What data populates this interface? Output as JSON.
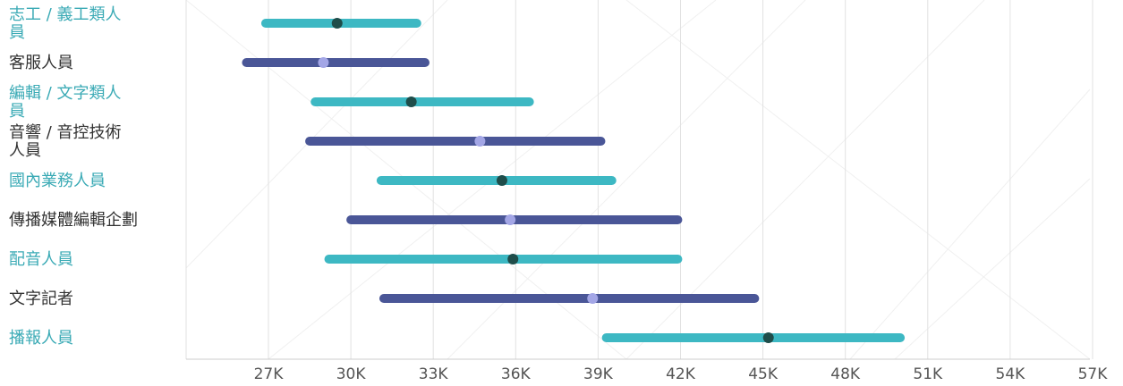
{
  "colors": {
    "teal": "#3db8c3",
    "navy": "#4a5697",
    "teal_dot": "#1f4d4a",
    "navy_dot": "#a3a6e6",
    "teal_label": "#3aaab5",
    "navy_label": "#333333",
    "grid": "#e2e2e2"
  },
  "chart_data": {
    "type": "range-bar",
    "orientation": "horizontal",
    "x_ticks": [
      "27K",
      "30K",
      "33K",
      "36K",
      "39K",
      "42K",
      "45K",
      "48K",
      "51K",
      "54K",
      "57K"
    ],
    "xlim": [
      24000,
      57000
    ],
    "grid": true,
    "rows": [
      {
        "label": "志工 / 義工類人員",
        "min": 26900,
        "median": 29500,
        "max": 32400,
        "color": "teal"
      },
      {
        "label": "客服人員",
        "min": 26200,
        "median": 29000,
        "max": 32700,
        "color": "navy"
      },
      {
        "label": "編輯 / 文字類人員",
        "min": 28700,
        "median": 32200,
        "max": 36500,
        "color": "teal"
      },
      {
        "label": "音響 / 音控技術人員",
        "min": 28500,
        "median": 34700,
        "max": 39100,
        "color": "navy"
      },
      {
        "label": "國內業務人員",
        "min": 31100,
        "median": 35500,
        "max": 39500,
        "color": "teal"
      },
      {
        "label": "傳播媒體編輯企劃",
        "min": 30000,
        "median": 35800,
        "max": 41900,
        "color": "navy"
      },
      {
        "label": "配音人員",
        "min": 29200,
        "median": 35900,
        "max": 41900,
        "color": "teal"
      },
      {
        "label": "文字記者",
        "min": 31200,
        "median": 38800,
        "max": 44700,
        "color": "navy"
      },
      {
        "label": "播報人員",
        "min": 39300,
        "median": 45200,
        "max": 50000,
        "color": "teal"
      }
    ]
  }
}
